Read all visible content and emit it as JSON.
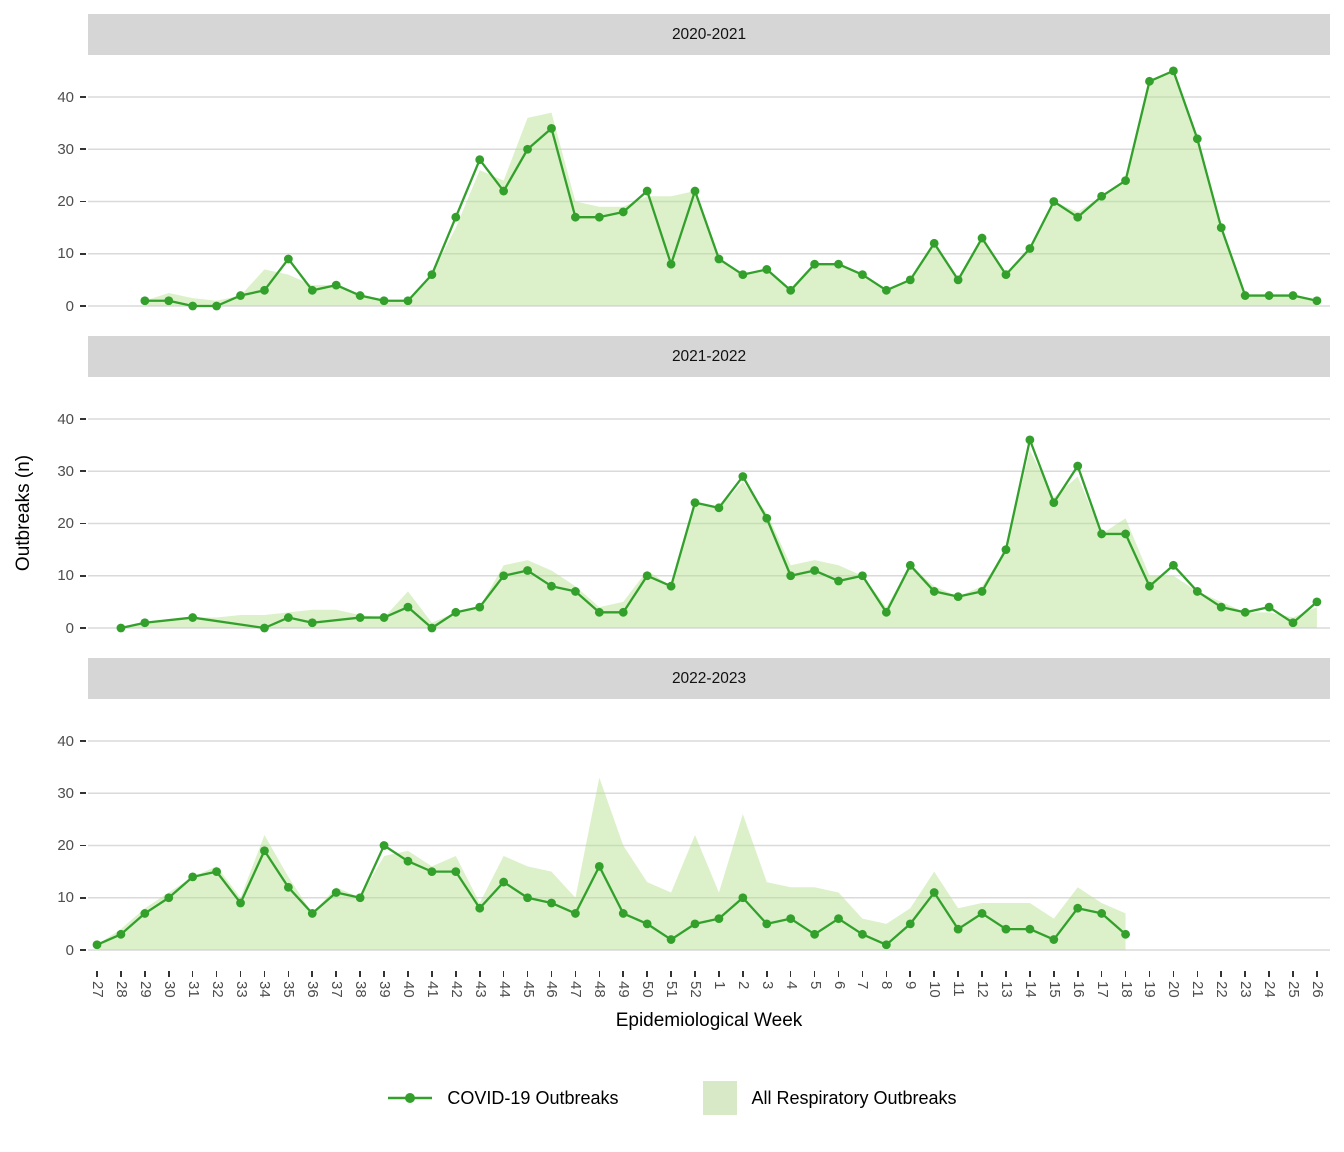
{
  "figure": {
    "x_axis_title": "Epidemiological Week",
    "y_axis_title": "Outbreaks (n)"
  },
  "legend": {
    "items": [
      {
        "label": "COVID-19 Outbreaks",
        "key": "line-point-key"
      },
      {
        "label": "All Respiratory Outbreaks",
        "key": "area-swatch-key"
      }
    ]
  },
  "colors": {
    "covid_line": "#33a02c",
    "respiratory_fill": "rgba(178,223,138,0.45)",
    "legend_swatch": "#d7e9c7",
    "strip_bg": "#d6d6d6",
    "gridline": "#dadada",
    "axis_text": "#4d4d4d",
    "tick": "#333333"
  },
  "chart_data": {
    "type": "area",
    "note": "Three vertically stacked facets; green line+points = COVID-19 Outbreaks, light green area = All Respiratory Outbreaks; null = no data shown that week",
    "xlabel": "Epidemiological Week",
    "ylabel": "Outbreaks (n)",
    "yticks": [
      0,
      10,
      20,
      30,
      40
    ],
    "ylim": [
      0,
      48
    ],
    "grid": "horizontal-only",
    "legend_position": "bottom",
    "categories": [
      "27",
      "28",
      "29",
      "30",
      "31",
      "32",
      "33",
      "34",
      "35",
      "36",
      "37",
      "38",
      "39",
      "40",
      "41",
      "42",
      "43",
      "44",
      "45",
      "46",
      "47",
      "48",
      "49",
      "50",
      "51",
      "52",
      "1",
      "2",
      "3",
      "4",
      "5",
      "6",
      "7",
      "8",
      "9",
      "10",
      "11",
      "12",
      "13",
      "14",
      "15",
      "16",
      "17",
      "18",
      "19",
      "20",
      "21",
      "22",
      "23",
      "24",
      "25",
      "26"
    ],
    "facets": [
      {
        "label": "2020-2021",
        "series": [
          {
            "name": "COVID-19 Outbreaks",
            "type": "line",
            "values": [
              null,
              null,
              1,
              1,
              0,
              0,
              2,
              3,
              9,
              3,
              4,
              2,
              1,
              1,
              6,
              17,
              28,
              22,
              30,
              34,
              17,
              17,
              18,
              22,
              8,
              22,
              9,
              6,
              7,
              3,
              8,
              8,
              6,
              3,
              5,
              12,
              5,
              13,
              6,
              11,
              20,
              17,
              21,
              24,
              43,
              45,
              32,
              15,
              2,
              2,
              2,
              1
            ]
          },
          {
            "name": "All Respiratory Outbreaks",
            "type": "area",
            "values": [
              null,
              null,
              1,
              2.5,
              1.5,
              1,
              2,
              7,
              6,
              4,
              4,
              2,
              1,
              1,
              6,
              15,
              26,
              24,
              36,
              37,
              20,
              19,
              19,
              21,
              21,
              22,
              9,
              6,
              7,
              3,
              8,
              8,
              6,
              3,
              5,
              12,
              5,
              13,
              6,
              11,
              20,
              18,
              21,
              24,
              43,
              45,
              32,
              15,
              2,
              2,
              2,
              1
            ]
          }
        ]
      },
      {
        "label": "2021-2022",
        "series": [
          {
            "name": "COVID-19 Outbreaks",
            "type": "line",
            "values": [
              null,
              0,
              1,
              null,
              2,
              null,
              null,
              0,
              2,
              1,
              null,
              2,
              2,
              4,
              0,
              3,
              4,
              10,
              11,
              8,
              7,
              3,
              3,
              10,
              8,
              24,
              23,
              29,
              21,
              10,
              11,
              9,
              10,
              3,
              12,
              7,
              6,
              7,
              15,
              36,
              24,
              31,
              18,
              18,
              8,
              12,
              7,
              4,
              3,
              4,
              1,
              5
            ]
          },
          {
            "name": "All Respiratory Outbreaks",
            "type": "area",
            "values": [
              null,
              0,
              1,
              1.5,
              2,
              2,
              2.5,
              2.5,
              3,
              3.5,
              3.5,
              2.5,
              2,
              7,
              1,
              3,
              4,
              12,
              13,
              11,
              8,
              4,
              5,
              11,
              8,
              24,
              23,
              28,
              22,
              12,
              13,
              12,
              10,
              4,
              12,
              8,
              6,
              8,
              15,
              34,
              25,
              29,
              18,
              21,
              10,
              10,
              7,
              5,
              3,
              3,
              2,
              4
            ]
          }
        ]
      },
      {
        "label": "2022-2023",
        "series": [
          {
            "name": "COVID-19 Outbreaks",
            "type": "line",
            "values": [
              1,
              3,
              7,
              10,
              14,
              15,
              9,
              19,
              12,
              7,
              11,
              10,
              20,
              17,
              15,
              15,
              8,
              13,
              10,
              9,
              7,
              16,
              7,
              5,
              2,
              5,
              6,
              10,
              5,
              6,
              3,
              6,
              3,
              1,
              5,
              11,
              4,
              7,
              4,
              4,
              2,
              8,
              7,
              3,
              null,
              null,
              null,
              null,
              null,
              null,
              null,
              null
            ]
          },
          {
            "name": "All Respiratory Outbreaks",
            "type": "area",
            "values": [
              1,
              4,
              8,
              11,
              14,
              16,
              10,
              22,
              14,
              7,
              12,
              10,
              18,
              19,
              16,
              18,
              9,
              18,
              16,
              15,
              10,
              33,
              20,
              13,
              11,
              22,
              11,
              26,
              13,
              12,
              12,
              11,
              6,
              5,
              8,
              15,
              8,
              9,
              9,
              9,
              6,
              12,
              9,
              7,
              null,
              null,
              null,
              null,
              null,
              null,
              null,
              null
            ]
          }
        ]
      }
    ]
  }
}
